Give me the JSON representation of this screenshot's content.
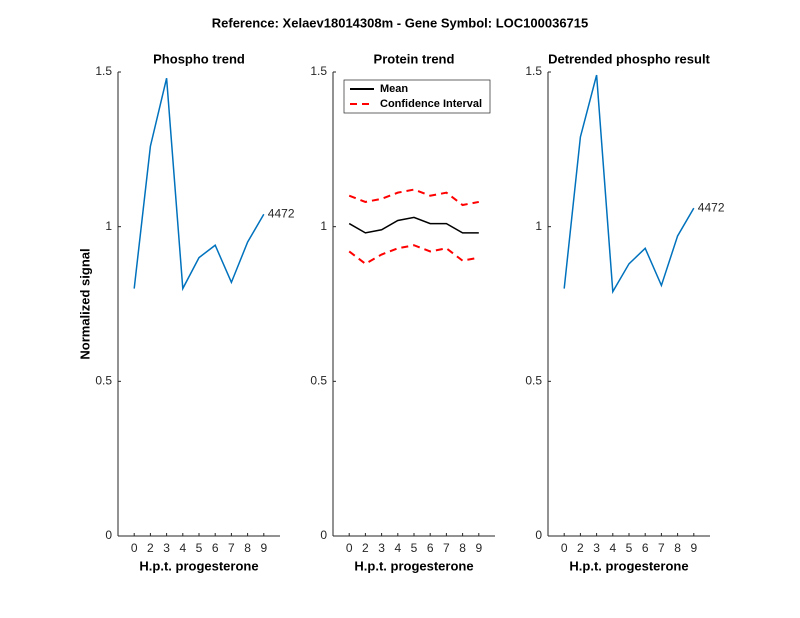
{
  "title": "Reference:  Xelaev18014308m - Gene Symbol:  LOC100036715",
  "chart_data": [
    {
      "type": "line",
      "title": "Phospho trend",
      "ylabel": "Normalized signal",
      "xlabel": "H.p.t. progesterone",
      "categories": [
        0,
        2,
        3,
        4,
        5,
        6,
        7,
        8,
        9
      ],
      "ylim": [
        0,
        1.5
      ],
      "yticks": [
        0,
        0.5,
        1,
        1.5
      ],
      "series": [
        {
          "color": "#0072bd",
          "values": [
            0.8,
            1.26,
            1.48,
            0.8,
            0.9,
            0.94,
            0.82,
            0.95,
            1.04
          ]
        }
      ],
      "end_label": "4472"
    },
    {
      "type": "band",
      "title": "Protein trend",
      "xlabel": "H.p.t. progesterone",
      "categories": [
        0,
        2,
        3,
        4,
        5,
        6,
        7,
        8,
        9
      ],
      "ylim": [
        0,
        1.5
      ],
      "yticks": [
        0,
        0.5,
        1,
        1.5
      ],
      "legend": "northwest",
      "series": [
        {
          "name": "Mean",
          "color": "#000000",
          "values": [
            1.01,
            0.98,
            0.99,
            1.02,
            1.03,
            1.01,
            1.01,
            0.98,
            0.98
          ]
        }
      ],
      "interval": {
        "name": "Confidence Interval",
        "color": "#ff0000",
        "upper": [
          1.1,
          1.08,
          1.09,
          1.11,
          1.12,
          1.1,
          1.11,
          1.07,
          1.08
        ],
        "lower": [
          0.92,
          0.88,
          0.91,
          0.93,
          0.94,
          0.92,
          0.93,
          0.89,
          0.9
        ]
      }
    },
    {
      "type": "line",
      "title": "Detrended phospho result",
      "xlabel": "H.p.t. progesterone",
      "categories": [
        0,
        2,
        3,
        4,
        5,
        6,
        7,
        8,
        9
      ],
      "ylim": [
        0,
        1.5
      ],
      "yticks": [
        0,
        0.5,
        1,
        1.5
      ],
      "series": [
        {
          "color": "#0072bd",
          "values": [
            0.8,
            1.29,
            1.49,
            0.79,
            0.88,
            0.93,
            0.81,
            0.97,
            1.06
          ]
        }
      ],
      "end_label": "4472"
    }
  ]
}
